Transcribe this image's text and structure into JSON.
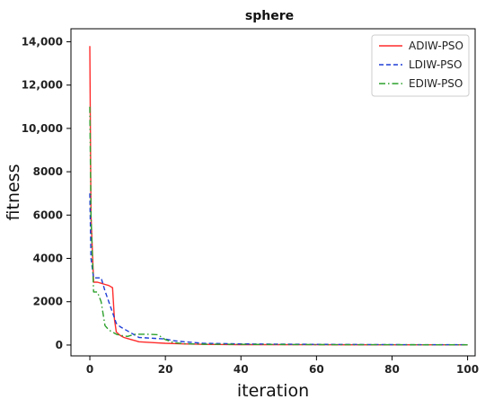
{
  "chart_data": {
    "type": "line",
    "title": "sphere",
    "xlabel": "iteration",
    "ylabel": "fitness",
    "xlim": [
      -5,
      102
    ],
    "ylim": [
      -500,
      14600
    ],
    "x_ticks": [
      0,
      20,
      40,
      60,
      80,
      100
    ],
    "x_tick_labels": [
      "0",
      "20",
      "40",
      "60",
      "80",
      "100"
    ],
    "y_ticks": [
      0,
      2000,
      4000,
      6000,
      8000,
      10000,
      12000,
      14000
    ],
    "y_tick_labels": [
      "0",
      "2000",
      "4000",
      "6000",
      "8000",
      "10,000",
      "12,000",
      "14,000"
    ],
    "grid": false,
    "legend_position": "top-right",
    "series": [
      {
        "name": "ADIW-PSO",
        "color": "#ff2b2b",
        "dash": "solid",
        "x": [
          0,
          0.3,
          1,
          2,
          3,
          4,
          5,
          6,
          6.5,
          7,
          8,
          9,
          10,
          11,
          12,
          13,
          15,
          17,
          20,
          25,
          30,
          40,
          60,
          80,
          100
        ],
        "y": [
          13800,
          6000,
          2900,
          2900,
          2850,
          2800,
          2750,
          2650,
          1200,
          600,
          450,
          350,
          300,
          250,
          200,
          150,
          130,
          110,
          80,
          50,
          30,
          20,
          15,
          12,
          10
        ]
      },
      {
        "name": "LDIW-PSO",
        "color": "#1f3fd6",
        "dash": "dashed",
        "x": [
          0,
          0.3,
          1,
          2,
          3,
          4,
          5,
          6,
          7,
          8,
          9,
          10,
          11,
          12,
          13,
          15,
          17,
          20,
          22,
          25,
          30,
          40,
          60,
          80,
          100
        ],
        "y": [
          7000,
          4000,
          3100,
          3100,
          3100,
          2500,
          2000,
          1500,
          1000,
          850,
          750,
          650,
          550,
          450,
          350,
          330,
          310,
          280,
          200,
          150,
          80,
          50,
          30,
          20,
          15
        ]
      },
      {
        "name": "EDIW-PSO",
        "color": "#2ca02c",
        "dash": "dashdot",
        "x": [
          0,
          0.3,
          1,
          2,
          3,
          4,
          5,
          6,
          7,
          8,
          9,
          10,
          11,
          12,
          15,
          18,
          20,
          22,
          25,
          30,
          40,
          60,
          80,
          100
        ],
        "y": [
          11000,
          6000,
          2450,
          2450,
          2000,
          900,
          700,
          600,
          500,
          450,
          420,
          400,
          450,
          500,
          500,
          480,
          250,
          120,
          60,
          40,
          30,
          20,
          15,
          10
        ]
      }
    ]
  }
}
